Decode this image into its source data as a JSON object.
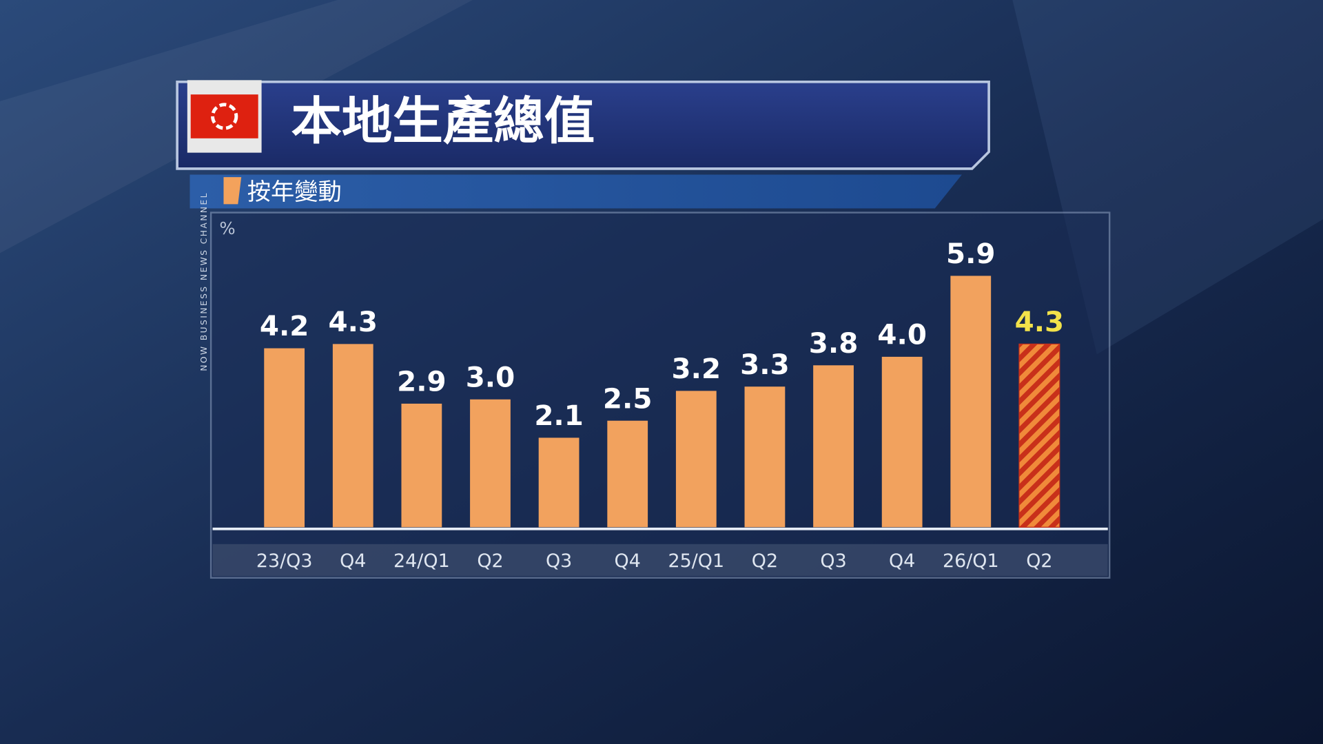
{
  "chart_data": {
    "type": "bar",
    "title": "本地生產總值",
    "subtitle": "按年變動",
    "y_label": "%",
    "channel": "NOW BUSINESS NEWS CHANNEL",
    "categories": [
      "23/Q3",
      "Q4",
      "24/Q1",
      "Q2",
      "Q3",
      "Q4",
      "25/Q1",
      "Q2",
      "Q3",
      "Q4",
      "26/Q1",
      "Q2"
    ],
    "values": [
      4.2,
      4.3,
      2.9,
      3.0,
      2.1,
      2.5,
      3.2,
      3.3,
      3.8,
      4.0,
      5.9,
      4.3
    ],
    "value_labels": [
      "4.2",
      "4.3",
      "2.9",
      "3.0",
      "2.1",
      "2.5",
      "3.2",
      "3.3",
      "3.8",
      "4.0",
      "5.9",
      "4.3"
    ],
    "color": "#f2a25e",
    "highlight_color": "#c8301a",
    "highlight_label_color": "#f2e24a"
  }
}
